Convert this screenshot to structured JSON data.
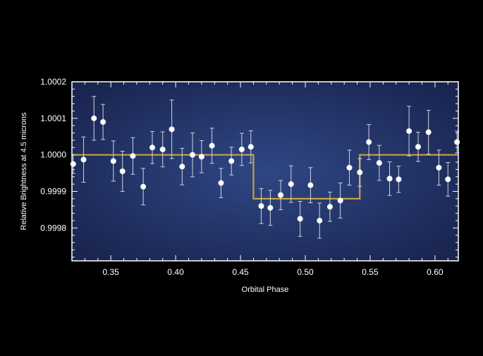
{
  "chart_data": {
    "type": "scatter",
    "xlabel": "Orbital Phase",
    "ylabel": "Relative Brightness at 4.5 microns",
    "xlim": [
      0.32,
      0.618
    ],
    "ylim": [
      0.99971,
      1.0002
    ],
    "x_ticks": [
      "0.35",
      "0.40",
      "0.45",
      "0.50",
      "0.55",
      "0.60"
    ],
    "y_ticks": [
      "1.0002",
      "1.0001",
      "1.0000",
      "0.9999",
      "0.9998"
    ],
    "grid": false,
    "colors": {
      "background_center": "#2f4785",
      "background_edge": "#1a2550",
      "points": "#ffffff",
      "model_line": "#c8a33a",
      "frame": "#ffffff"
    },
    "series": [
      {
        "type": "scatter_with_error",
        "points": [
          {
            "x": 0.321,
            "y": 0.999975,
            "err": 2.6e-05
          },
          {
            "x": 0.329,
            "y": 0.999987,
            "err": 6.2e-05
          },
          {
            "x": 0.337,
            "y": 1.0001,
            "err": 6e-05
          },
          {
            "x": 0.344,
            "y": 1.00009,
            "err": 4.8e-05
          },
          {
            "x": 0.352,
            "y": 0.999983,
            "err": 5.5e-05
          },
          {
            "x": 0.359,
            "y": 0.999955,
            "err": 5.5e-05
          },
          {
            "x": 0.367,
            "y": 0.999997,
            "err": 5e-05
          },
          {
            "x": 0.375,
            "y": 0.999913,
            "err": 5e-05
          },
          {
            "x": 0.382,
            "y": 1.00002,
            "err": 4.4e-05
          },
          {
            "x": 0.39,
            "y": 1.000015,
            "err": 4.8e-05
          },
          {
            "x": 0.397,
            "y": 1.00007,
            "err": 8e-05
          },
          {
            "x": 0.405,
            "y": 0.999968,
            "err": 5e-05
          },
          {
            "x": 0.413,
            "y": 1.0,
            "err": 6e-05
          },
          {
            "x": 0.42,
            "y": 0.999995,
            "err": 4.4e-05
          },
          {
            "x": 0.428,
            "y": 1.000025,
            "err": 4.8e-05
          },
          {
            "x": 0.435,
            "y": 0.999923,
            "err": 4e-05
          },
          {
            "x": 0.443,
            "y": 0.999983,
            "err": 3.8e-05
          },
          {
            "x": 0.451,
            "y": 1.000015,
            "err": 4.4e-05
          },
          {
            "x": 0.458,
            "y": 1.000022,
            "err": 4.4e-05
          },
          {
            "x": 0.466,
            "y": 0.99986,
            "err": 4.8e-05
          },
          {
            "x": 0.473,
            "y": 0.999855,
            "err": 4.8e-05
          },
          {
            "x": 0.481,
            "y": 0.99989,
            "err": 4e-05
          },
          {
            "x": 0.489,
            "y": 0.99992,
            "err": 5e-05
          },
          {
            "x": 0.496,
            "y": 0.999825,
            "err": 4.8e-05
          },
          {
            "x": 0.504,
            "y": 0.999917,
            "err": 4.8e-05
          },
          {
            "x": 0.511,
            "y": 0.99982,
            "err": 4.8e-05
          },
          {
            "x": 0.519,
            "y": 0.999858,
            "err": 4e-05
          },
          {
            "x": 0.527,
            "y": 0.999875,
            "err": 4.8e-05
          },
          {
            "x": 0.534,
            "y": 0.999965,
            "err": 4.8e-05
          },
          {
            "x": 0.542,
            "y": 0.999952,
            "err": 3.8e-05
          },
          {
            "x": 0.549,
            "y": 1.000035,
            "err": 4.8e-05
          },
          {
            "x": 0.557,
            "y": 0.999978,
            "err": 4.8e-05
          },
          {
            "x": 0.565,
            "y": 0.999935,
            "err": 4.6e-05
          },
          {
            "x": 0.572,
            "y": 0.999933,
            "err": 3.6e-05
          },
          {
            "x": 0.58,
            "y": 1.000065,
            "err": 6.8e-05
          },
          {
            "x": 0.587,
            "y": 1.000022,
            "err": 4e-05
          },
          {
            "x": 0.595,
            "y": 1.000062,
            "err": 6e-05
          },
          {
            "x": 0.603,
            "y": 0.999965,
            "err": 4.8e-05
          },
          {
            "x": 0.61,
            "y": 0.999933,
            "err": 4.6e-05
          },
          {
            "x": 0.617,
            "y": 1.000035,
            "err": 3e-05
          }
        ]
      },
      {
        "type": "step_line",
        "x": [
          0.32,
          0.46,
          0.46,
          0.542,
          0.542,
          0.618
        ],
        "y": [
          1.0,
          1.0,
          0.99988,
          0.99988,
          1.0,
          1.0
        ]
      }
    ]
  }
}
